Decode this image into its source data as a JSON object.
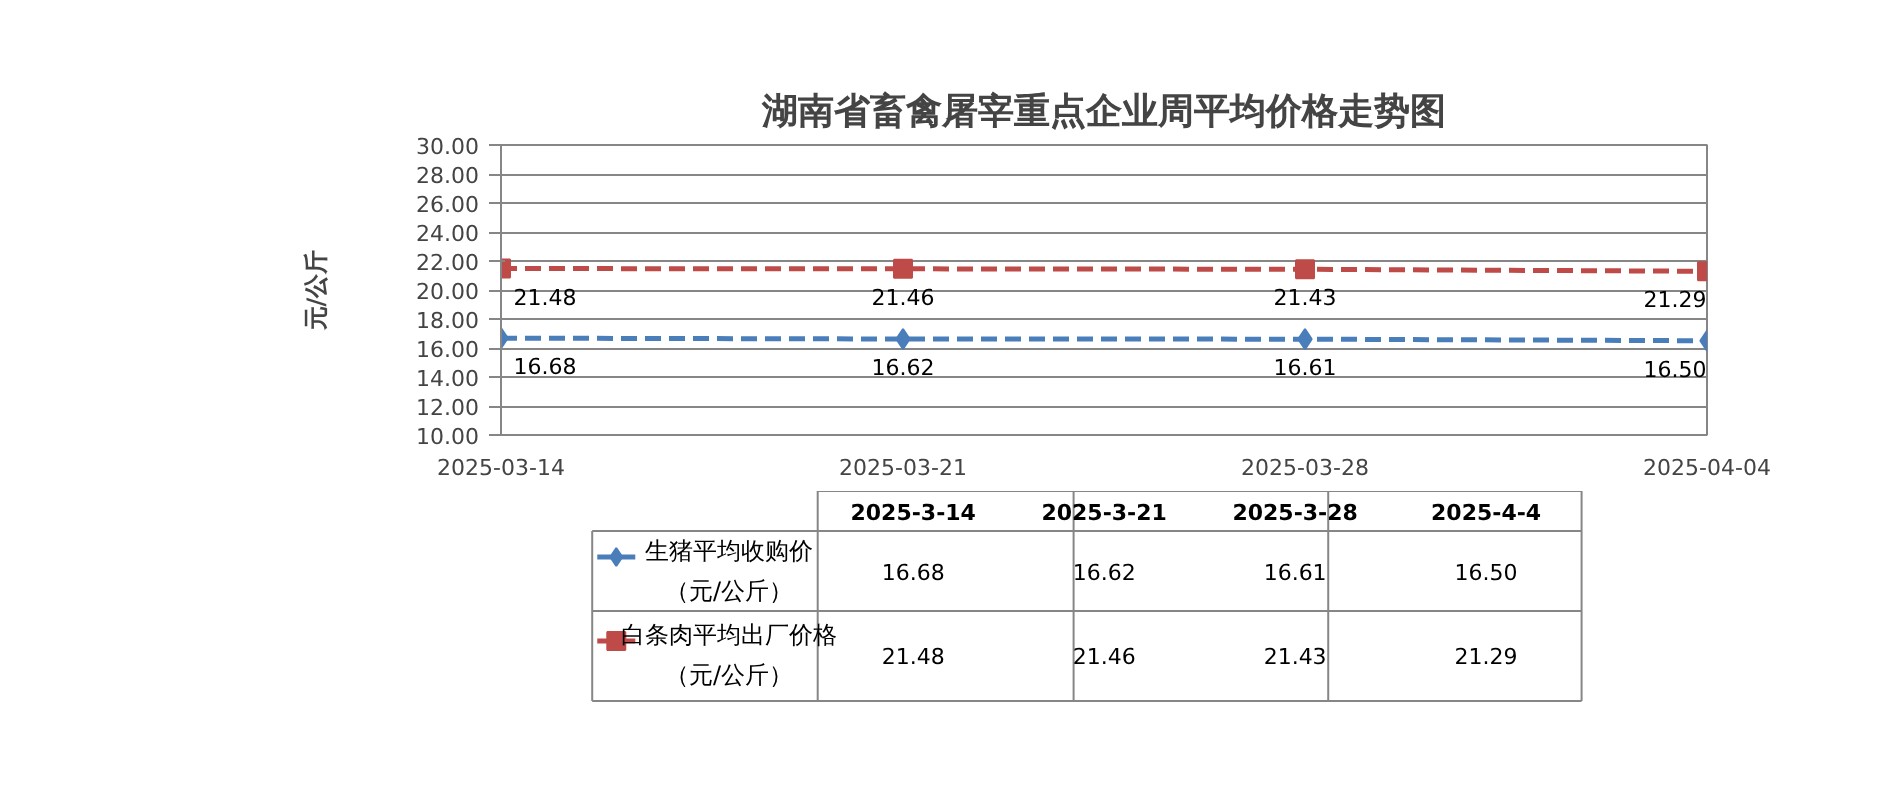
{
  "chart_data": {
    "type": "line",
    "title": "湖南省畜禽屠宰重点企业周平均价格走势图",
    "ylabel": "元/公斤",
    "x": [
      "2025-03-14",
      "2025-03-21",
      "2025-03-28",
      "2025-04-04"
    ],
    "xlim": [
      "2025-03-14",
      "2025-04-04"
    ],
    "xticks": [
      {
        "value": "2025-03-14",
        "label": "2025-03-14"
      },
      {
        "value": "2025-03-21",
        "label": "2025-03-21"
      },
      {
        "value": "2025-03-28",
        "label": "2025-03-28"
      },
      {
        "value": "2025-04-04",
        "label": "2025-04-04"
      }
    ],
    "ylim": [
      10,
      30
    ],
    "yticks": [
      {
        "value": 10,
        "label": "10.00"
      },
      {
        "value": 12,
        "label": "12.00"
      },
      {
        "value": 14,
        "label": "14.00"
      },
      {
        "value": 16,
        "label": "16.00"
      },
      {
        "value": 18,
        "label": "18.00"
      },
      {
        "value": 20,
        "label": "20.00"
      },
      {
        "value": 22,
        "label": "22.00"
      },
      {
        "value": 24,
        "label": "24.00"
      },
      {
        "value": 26,
        "label": "26.00"
      },
      {
        "value": 28,
        "label": "28.00"
      },
      {
        "value": 30,
        "label": "30.00"
      }
    ],
    "grid": "y",
    "legend": "bottom",
    "line_style": "dashed",
    "annotations": [
      "2025-3-14",
      "2025-3-21",
      "2025-3-28",
      "2025-4-4"
    ],
    "series": [
      {
        "name": "生猪平均收购价（元/公斤）",
        "color": "#4a7ebb",
        "marker": "diamond",
        "values": [
          16.68,
          16.62,
          16.61,
          16.5
        ],
        "value_labels": [
          "16.68",
          "16.62",
          "16.61",
          "16.50"
        ]
      },
      {
        "name": "白条肉平均出厂价格（元/公斤）",
        "color": "#be4b48",
        "marker": "square",
        "values": [
          21.48,
          21.46,
          21.43,
          21.29
        ],
        "value_labels": [
          "21.48",
          "21.46",
          "21.43",
          "21.29"
        ]
      }
    ]
  }
}
